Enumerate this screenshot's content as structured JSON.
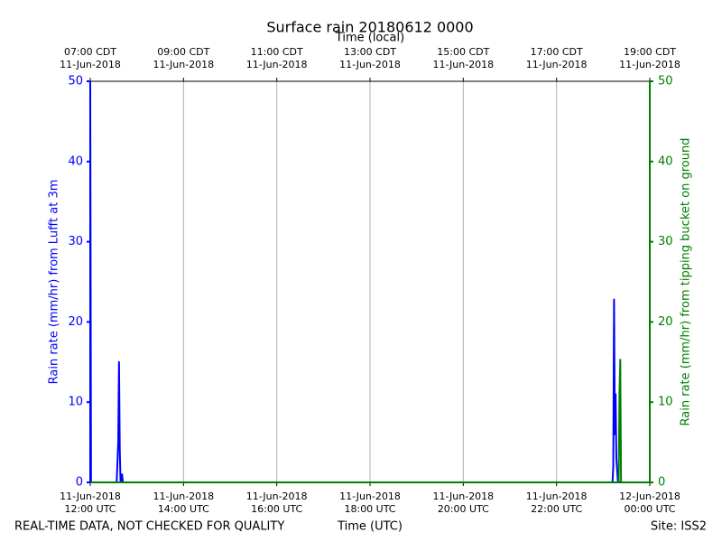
{
  "chart_data": {
    "type": "line",
    "title": "Surface rain 20180612 0000",
    "x2label": "Time (local)",
    "xlabel": "Time (UTC)",
    "ylabel": "Rain rate (mm/hr) from Lufft at 3m",
    "y2label": "Rain rate (mm/hr) from tipping bucket on ground",
    "footer_left": "REAL-TIME DATA, NOT CHECKED FOR QUALITY",
    "footer_right": "Site: ISS2",
    "xlim": [
      "2018-06-11T12:00",
      "2018-06-12T00:00"
    ],
    "xticks": [
      {
        "value": "2018-06-11T12:00",
        "label": [
          "11-Jun-2018",
          "12:00 UTC"
        ]
      },
      {
        "value": "2018-06-11T14:00",
        "label": [
          "11-Jun-2018",
          "14:00 UTC"
        ]
      },
      {
        "value": "2018-06-11T16:00",
        "label": [
          "11-Jun-2018",
          "16:00 UTC"
        ]
      },
      {
        "value": "2018-06-11T18:00",
        "label": [
          "11-Jun-2018",
          "18:00 UTC"
        ]
      },
      {
        "value": "2018-06-11T20:00",
        "label": [
          "11-Jun-2018",
          "20:00 UTC"
        ]
      },
      {
        "value": "2018-06-11T22:00",
        "label": [
          "11-Jun-2018",
          "22:00 UTC"
        ]
      },
      {
        "value": "2018-06-12T00:00",
        "label": [
          "12-Jun-2018",
          "00:00 UTC"
        ]
      }
    ],
    "x2ticks": [
      {
        "value": "2018-06-11T12:00",
        "label": [
          "07:00 CDT",
          "11-Jun-2018"
        ]
      },
      {
        "value": "2018-06-11T14:00",
        "label": [
          "09:00 CDT",
          "11-Jun-2018"
        ]
      },
      {
        "value": "2018-06-11T16:00",
        "label": [
          "11:00 CDT",
          "11-Jun-2018"
        ]
      },
      {
        "value": "2018-06-11T18:00",
        "label": [
          "13:00 CDT",
          "11-Jun-2018"
        ]
      },
      {
        "value": "2018-06-11T20:00",
        "label": [
          "15:00 CDT",
          "11-Jun-2018"
        ]
      },
      {
        "value": "2018-06-11T22:00",
        "label": [
          "17:00 CDT",
          "11-Jun-2018"
        ]
      },
      {
        "value": "2018-06-12T00:00",
        "label": [
          "19:00 CDT",
          "11-Jun-2018"
        ]
      }
    ],
    "ylim": [
      0,
      50
    ],
    "yticks": [
      0,
      10,
      20,
      30,
      40,
      50
    ],
    "y2lim": [
      0,
      50
    ],
    "y2ticks": [
      0,
      10,
      20,
      30,
      40,
      50
    ],
    "ycolor": "#0000ff",
    "y2color": "#008000",
    "grid": true,
    "series": [
      {
        "color": "#0000ff",
        "axis": "y",
        "x": [
          "2018-06-11T12:00",
          "2018-06-11T12:01",
          "2018-06-11T12:34",
          "2018-06-11T12:36",
          "2018-06-11T12:37",
          "2018-06-11T12:38",
          "2018-06-11T12:39",
          "2018-06-11T12:41",
          "2018-06-11T12:42",
          "2018-06-11T23:12",
          "2018-06-11T23:13",
          "2018-06-11T23:14",
          "2018-06-11T23:15",
          "2018-06-11T23:16",
          "2018-06-11T23:17",
          "2018-06-11T23:19",
          "2018-06-12T00:00"
        ],
        "values": [
          50,
          0,
          0,
          5,
          15,
          4,
          0,
          1,
          0,
          0,
          2,
          22.8,
          6,
          11,
          3,
          0,
          0
        ]
      },
      {
        "color": "#008000",
        "axis": "y2",
        "x": [
          "2018-06-11T12:00",
          "2018-06-11T23:20",
          "2018-06-11T23:21",
          "2018-06-11T23:22",
          "2018-06-11T23:23",
          "2018-06-12T00:00"
        ],
        "values": [
          0,
          0,
          11,
          15.3,
          0,
          0
        ]
      }
    ]
  }
}
